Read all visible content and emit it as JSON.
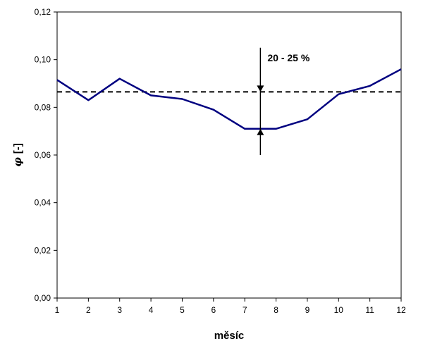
{
  "chart_data": {
    "type": "line",
    "xlabel": "měsíc",
    "ylabel_symbol": "φ",
    "ylabel_unit": "[-]",
    "xlim": [
      1,
      12
    ],
    "ylim": [
      0,
      0.12
    ],
    "x_ticks": [
      "1",
      "2",
      "3",
      "4",
      "5",
      "6",
      "7",
      "8",
      "9",
      "10",
      "11",
      "12"
    ],
    "y_ticks": [
      "0,00",
      "0,02",
      "0,04",
      "0,06",
      "0,08",
      "0,10",
      "0,12"
    ],
    "grid": false,
    "series": [
      {
        "x": [
          1,
          2,
          3,
          4,
          5,
          6,
          7,
          8,
          9,
          10,
          11,
          12
        ],
        "values": [
          0.0915,
          0.083,
          0.092,
          0.085,
          0.0835,
          0.079,
          0.071,
          0.071,
          0.075,
          0.0855,
          0.089,
          0.096
        ],
        "color": "#000080"
      }
    ],
    "reference_line": {
      "value": 0.0865,
      "style": "dashed",
      "color": "#000000"
    },
    "annotation": {
      "text": "20 - 25 %",
      "x": 7.5,
      "arrow_top_from": 0.105,
      "arrow_top_to": 0.0865,
      "arrow_bottom_from": 0.06,
      "arrow_bottom_to": 0.071
    }
  }
}
